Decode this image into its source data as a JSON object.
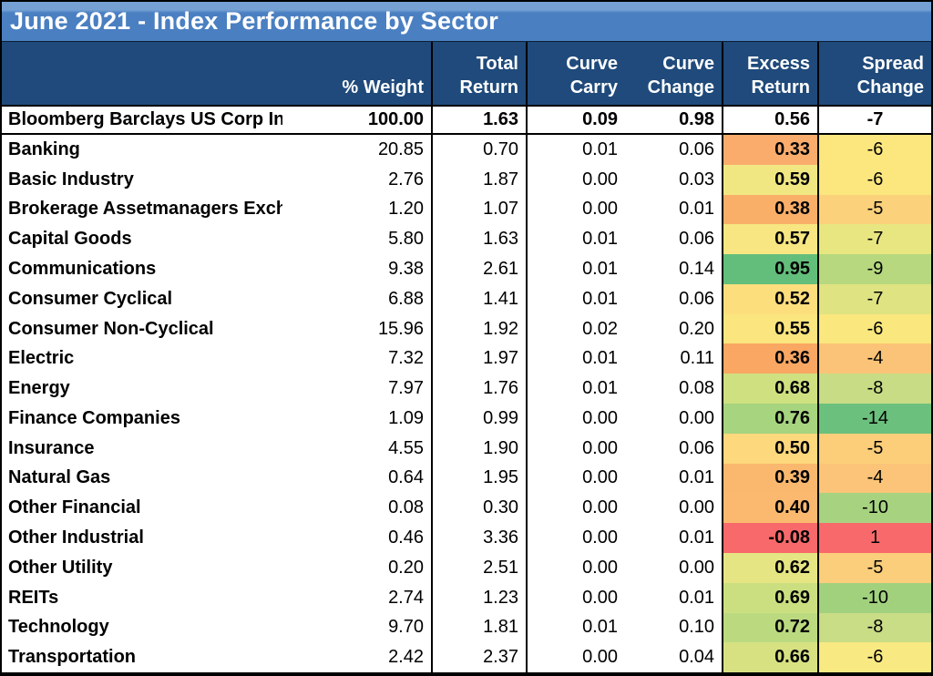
{
  "chart_data": {
    "type": "table",
    "title": "June 2021 - Index Performance by Sector",
    "column_headers": [
      {
        "line1": "",
        "line2": "% Weight"
      },
      {
        "line1": "Total",
        "line2": "Return"
      },
      {
        "line1": "Curve",
        "line2": "Carry"
      },
      {
        "line1": "Curve",
        "line2": "Change"
      },
      {
        "line1": "Excess",
        "line2": "Return"
      },
      {
        "line1": "Spread",
        "line2": "Change"
      }
    ],
    "index_row": {
      "name": "Bloomberg Barclays US Corp Index",
      "weight": "100.00",
      "total_return": "1.63",
      "curve_carry": "0.09",
      "curve_change": "0.98",
      "excess_return": "0.56",
      "spread_change": "-7"
    },
    "rows": [
      {
        "name": "Banking",
        "weight": "20.85",
        "total_return": "0.70",
        "curve_carry": "0.01",
        "curve_change": "0.06",
        "excess_return": "0.33",
        "spread_change": "-6",
        "excess_color": "#FAAC6D",
        "spread_color": "#FBE77E"
      },
      {
        "name": "Basic Industry",
        "weight": "2.76",
        "total_return": "1.87",
        "curve_carry": "0.00",
        "curve_change": "0.03",
        "excess_return": "0.59",
        "spread_change": "-6",
        "excess_color": "#F0E783",
        "spread_color": "#FBE77E"
      },
      {
        "name": "Brokerage Assetmanagers Exchanges",
        "weight": "1.20",
        "total_return": "1.07",
        "curve_carry": "0.00",
        "curve_change": "0.01",
        "excess_return": "0.38",
        "spread_change": "-5",
        "excess_color": "#FAAF69",
        "spread_color": "#FCD17B"
      },
      {
        "name": "Capital Goods",
        "weight": "5.80",
        "total_return": "1.63",
        "curve_carry": "0.01",
        "curve_change": "0.06",
        "excess_return": "0.57",
        "spread_change": "-7",
        "excess_color": "#F7E681",
        "spread_color": "#E8E680"
      },
      {
        "name": "Communications",
        "weight": "9.38",
        "total_return": "2.61",
        "curve_carry": "0.01",
        "curve_change": "0.14",
        "excess_return": "0.95",
        "spread_change": "-9",
        "excess_color": "#63BE7B",
        "spread_color": "#B7D87E"
      },
      {
        "name": "Consumer Cyclical",
        "weight": "6.88",
        "total_return": "1.41",
        "curve_carry": "0.01",
        "curve_change": "0.06",
        "excess_return": "0.52",
        "spread_change": "-7",
        "excess_color": "#FCDE7D",
        "spread_color": "#E0E382"
      },
      {
        "name": "Consumer Non-Cyclical",
        "weight": "15.96",
        "total_return": "1.92",
        "curve_carry": "0.02",
        "curve_change": "0.20",
        "excess_return": "0.55",
        "spread_change": "-6",
        "excess_color": "#FBE57E",
        "spread_color": "#FAE77E"
      },
      {
        "name": "Electric",
        "weight": "7.32",
        "total_return": "1.97",
        "curve_carry": "0.01",
        "curve_change": "0.11",
        "excess_return": "0.36",
        "spread_change": "-4",
        "excess_color": "#F9A763",
        "spread_color": "#FBC377"
      },
      {
        "name": "Energy",
        "weight": "7.97",
        "total_return": "1.76",
        "curve_carry": "0.01",
        "curve_change": "0.08",
        "excess_return": "0.68",
        "spread_change": "-8",
        "excess_color": "#CFE081",
        "spread_color": "#C8DC85"
      },
      {
        "name": "Finance Companies",
        "weight": "1.09",
        "total_return": "0.99",
        "curve_carry": "0.00",
        "curve_change": "0.00",
        "excess_return": "0.76",
        "spread_change": "-14",
        "excess_color": "#A6D47F",
        "spread_color": "#6CC07D"
      },
      {
        "name": "Insurance",
        "weight": "4.55",
        "total_return": "1.90",
        "curve_carry": "0.00",
        "curve_change": "0.06",
        "excess_return": "0.50",
        "spread_change": "-5",
        "excess_color": "#FDD87C",
        "spread_color": "#FCCE7A"
      },
      {
        "name": "Natural Gas",
        "weight": "0.64",
        "total_return": "1.95",
        "curve_carry": "0.00",
        "curve_change": "0.01",
        "excess_return": "0.39",
        "spread_change": "-4",
        "excess_color": "#FAB86F",
        "spread_color": "#FBC478"
      },
      {
        "name": "Other Financial",
        "weight": "0.08",
        "total_return": "0.30",
        "curve_carry": "0.00",
        "curve_change": "0.00",
        "excess_return": "0.40",
        "spread_change": "-10",
        "excess_color": "#FAB96F",
        "spread_color": "#A7D381"
      },
      {
        "name": "Other Industrial",
        "weight": "0.46",
        "total_return": "3.36",
        "curve_carry": "0.00",
        "curve_change": "0.01",
        "excess_return": "-0.08",
        "spread_change": "1",
        "excess_color": "#F8696B",
        "spread_color": "#F8696B"
      },
      {
        "name": "Other Utility",
        "weight": "0.20",
        "total_return": "2.51",
        "curve_carry": "0.00",
        "curve_change": "0.00",
        "excess_return": "0.62",
        "spread_change": "-5",
        "excess_color": "#E6E583",
        "spread_color": "#FBCE7B"
      },
      {
        "name": "REITs",
        "weight": "2.74",
        "total_return": "1.23",
        "curve_carry": "0.00",
        "curve_change": "0.01",
        "excess_return": "0.69",
        "spread_change": "-10",
        "excess_color": "#CBDF81",
        "spread_color": "#A2D17E"
      },
      {
        "name": "Technology",
        "weight": "9.70",
        "total_return": "1.81",
        "curve_carry": "0.01",
        "curve_change": "0.10",
        "excess_return": "0.72",
        "spread_change": "-8",
        "excess_color": "#BBDA80",
        "spread_color": "#C9DC86"
      },
      {
        "name": "Transportation",
        "weight": "2.42",
        "total_return": "2.37",
        "curve_carry": "0.00",
        "curve_change": "0.04",
        "excess_return": "0.66",
        "spread_change": "-6",
        "excess_color": "#D7E182",
        "spread_color": "#F8E983"
      }
    ],
    "colors": {
      "title_bar_top": "#74A0D4",
      "title_bar_main": "#4A7FC1",
      "header_bg": "#1F4A7B",
      "header_text": "#FFFFFF",
      "border": "#000000",
      "heat_scale_min": "#F8696B",
      "heat_scale_mid": "#FFEB84",
      "heat_scale_max": "#63BE7B"
    },
    "layout": {
      "heatmap_columns": [
        "Excess Return",
        "Spread Change"
      ],
      "grid": "vertical separators only; index row ruled above and below"
    }
  }
}
